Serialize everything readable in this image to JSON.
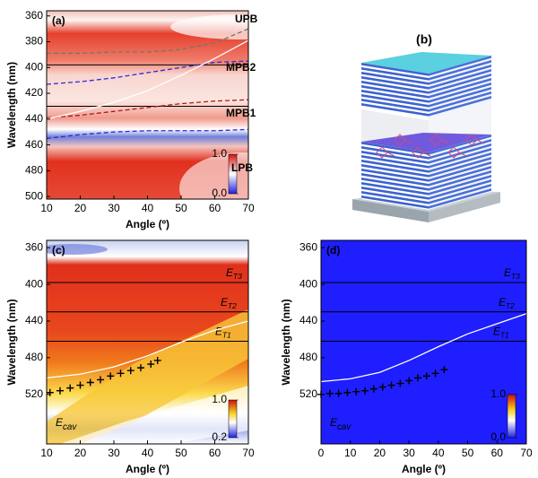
{
  "chart_data": [
    {
      "type": "line",
      "title": "(a)",
      "x_label": "Angle (º)",
      "y_label": "Wavelength (nm)",
      "xlim": [
        10,
        70
      ],
      "ylim": [
        356,
        502
      ],
      "y_inverted": true,
      "xticks": [
        10,
        20,
        30,
        40,
        50,
        60,
        70
      ],
      "yticks": [
        360,
        380,
        400,
        420,
        440,
        460,
        480,
        500
      ],
      "hlines": [
        398,
        430
      ],
      "series": [
        {
          "name": "UPB",
          "color": "#6b7b6b",
          "dashed": true,
          "x": [
            10,
            20,
            30,
            40,
            50,
            60,
            70
          ],
          "values": [
            389,
            389,
            388,
            388,
            386,
            381,
            370
          ]
        },
        {
          "name": "MPB2",
          "color": "#2a2ad8",
          "dashed": true,
          "x": [
            10,
            20,
            30,
            40,
            50,
            60,
            70
          ],
          "values": [
            413,
            411,
            408,
            404,
            400,
            396,
            395
          ]
        },
        {
          "name": "MPB1",
          "color": "#b01818",
          "dashed": true,
          "x": [
            10,
            20,
            30,
            40,
            50,
            60,
            70
          ],
          "values": [
            439,
            437,
            434,
            431,
            428,
            426,
            425
          ]
        },
        {
          "name": "LPB",
          "color": "#2a2ad8",
          "dashed": true,
          "x": [
            10,
            20,
            30,
            40,
            50,
            60,
            70
          ],
          "values": [
            455,
            452,
            450,
            449,
            449,
            449,
            448
          ]
        },
        {
          "color": "#ffffff",
          "x": [
            10,
            20,
            30,
            40,
            50,
            60,
            70
          ],
          "values": [
            440,
            434,
            427,
            418,
            406,
            393,
            379
          ]
        }
      ],
      "colorbar": {
        "ticks": [
          {
            "value": 1,
            "label": "1.0"
          },
          {
            "value": 0,
            "label": "0.0"
          }
        ]
      }
    },
    {
      "type": "line",
      "title": "(c)",
      "x_label": "Angle (º)",
      "y_label": "Wavelength (nm)",
      "xlim": [
        10,
        70
      ],
      "ylim": [
        352,
        574
      ],
      "y_inverted": true,
      "xticks": [
        10,
        20,
        30,
        40,
        50,
        60,
        70
      ],
      "yticks": [
        360,
        400,
        440,
        480,
        520
      ],
      "hlines": [
        398,
        430,
        462
      ],
      "hline_labels": [
        {
          "main": "E",
          "sub": "T3"
        },
        {
          "main": "E",
          "sub": "T2"
        },
        {
          "main": "E",
          "sub": "T1"
        }
      ],
      "series": [
        {
          "label": {
            "main": "E",
            "sub": "cav"
          },
          "color": "#ffffff",
          "x": [
            10,
            20,
            30,
            40,
            50,
            60,
            70
          ],
          "values": [
            502,
            498,
            490,
            478,
            463,
            450,
            440
          ]
        },
        {
          "markers": "+",
          "color": "#000000",
          "x": [
            11,
            14,
            17,
            20,
            23,
            26,
            29,
            32,
            35,
            38,
            41,
            43
          ],
          "values": [
            518,
            516,
            513,
            510,
            507,
            504,
            500,
            497,
            494,
            491,
            487,
            483
          ]
        }
      ],
      "colorbar": {
        "ticks": [
          {
            "value": 1,
            "label": "1.0"
          },
          {
            "value": 0.2,
            "label": "0.2"
          }
        ]
      }
    },
    {
      "type": "line",
      "title": "(d)",
      "x_label": "Angle (º)",
      "y_label": "Wavelength (nm)",
      "xlim": [
        0,
        70
      ],
      "ylim": [
        352,
        574
      ],
      "y_inverted": true,
      "xticks": [
        0,
        10,
        20,
        30,
        40,
        50,
        60,
        70
      ],
      "yticks": [
        360,
        400,
        440,
        480,
        520
      ],
      "hlines": [
        398,
        430,
        462
      ],
      "hline_labels": [
        {
          "main": "E",
          "sub": "T3"
        },
        {
          "main": "E",
          "sub": "T2"
        },
        {
          "main": "E",
          "sub": "T1"
        }
      ],
      "series": [
        {
          "label": {
            "main": "E",
            "sub": "cav"
          },
          "color": "#ffffff",
          "x": [
            0,
            10,
            20,
            30,
            40,
            50,
            60,
            70
          ],
          "values": [
            506,
            503,
            496,
            483,
            468,
            454,
            443,
            432
          ]
        },
        {
          "markers": "+",
          "color": "#000000",
          "x": [
            0,
            3,
            6,
            9,
            12,
            15,
            18,
            21,
            24,
            27,
            30,
            33,
            36,
            39,
            42
          ],
          "values": [
            520,
            519,
            519,
            518,
            517,
            516,
            514,
            512,
            510,
            508,
            505,
            502,
            500,
            497,
            493
          ]
        }
      ],
      "colorbar": {
        "ticks": [
          {
            "value": 1,
            "label": "1.0"
          },
          {
            "value": 0,
            "label": "0.0"
          }
        ]
      }
    }
  ],
  "panel_b": {
    "label": "(b)"
  }
}
